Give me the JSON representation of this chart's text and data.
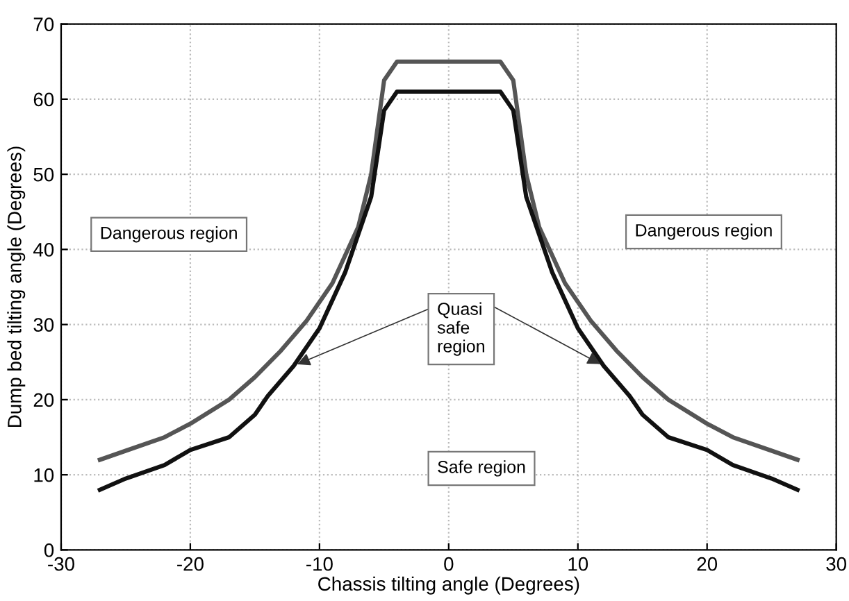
{
  "chart_data": {
    "type": "line",
    "xlabel": "Chassis tilting angle (Degrees)",
    "ylabel": "Dump bed tilting angle (Degrees)",
    "xlim": [
      -30,
      30
    ],
    "ylim": [
      0,
      70
    ],
    "xticks": [
      -30,
      -20,
      -10,
      0,
      10,
      20,
      30
    ],
    "yticks": [
      0,
      10,
      20,
      30,
      40,
      50,
      60,
      70
    ],
    "grid": true,
    "marker": "none",
    "line_style": "solid",
    "series": [
      {
        "color": "#555555",
        "x": [
          -27,
          -25,
          -22,
          -20,
          -17,
          -15,
          -13,
          -11,
          -9,
          -7,
          -6,
          -5,
          -4,
          4,
          5,
          6,
          7,
          9,
          11,
          13,
          15,
          17,
          20,
          22,
          25,
          27
        ],
        "values": [
          12,
          13.2,
          15,
          16.8,
          20,
          23,
          26.5,
          30.5,
          35.5,
          43,
          50,
          62.5,
          65,
          65,
          62.5,
          50,
          43,
          35.5,
          30.5,
          26.5,
          23,
          20,
          16.8,
          15,
          13.2,
          12
        ]
      },
      {
        "color": "#111111",
        "x": [
          -27,
          -25,
          -22,
          -20,
          -17,
          -15,
          -14,
          -12,
          -10,
          -8,
          -6,
          -5,
          -4,
          4,
          5,
          6,
          8,
          10,
          12,
          14,
          15,
          17,
          20,
          22,
          25,
          27
        ],
        "values": [
          8,
          9.5,
          11.3,
          13.3,
          15,
          18,
          20.5,
          24.5,
          29.5,
          37,
          47,
          58.5,
          61,
          61,
          58.5,
          47,
          37,
          29.5,
          24.5,
          20.5,
          18,
          15,
          13.3,
          11.3,
          9.5,
          8
        ]
      }
    ],
    "annotations": [
      "Dangerous region",
      "Dangerous region",
      {
        "text": "Quasi\nsafe\nregion",
        "x": -12,
        "y": 24.5
      },
      "Safe region"
    ]
  }
}
